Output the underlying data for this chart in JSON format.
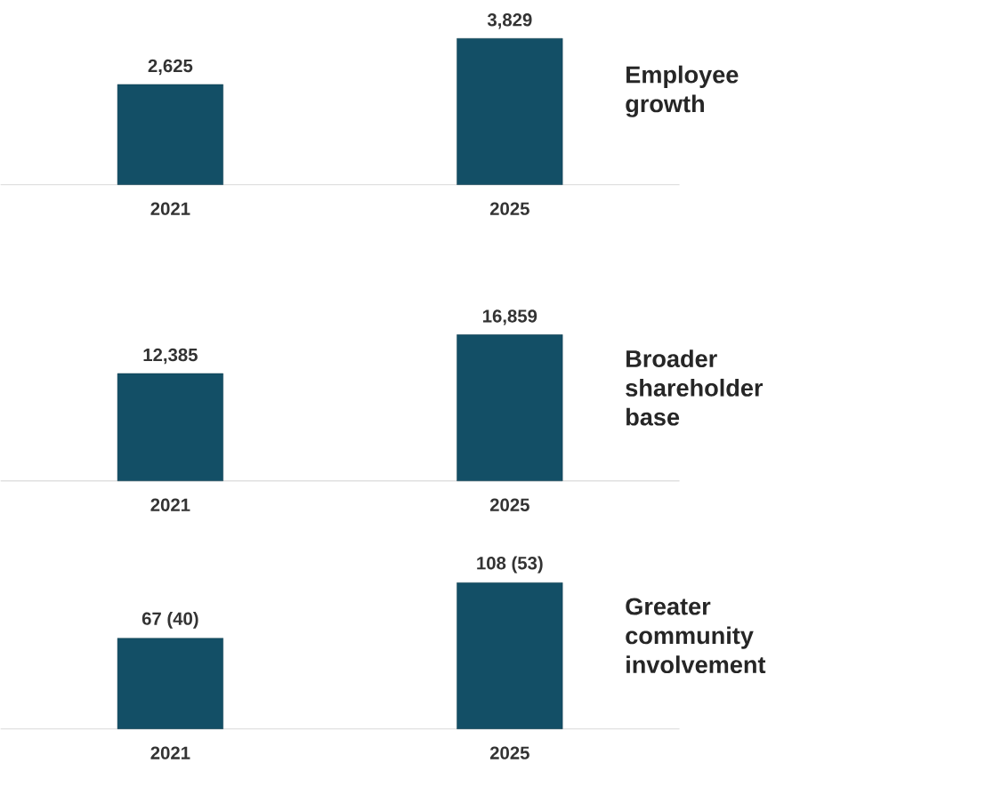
{
  "chart_data": [
    {
      "type": "bar",
      "title": "Employee growth",
      "categories": [
        "2021",
        "2025"
      ],
      "values": [
        2625,
        3829
      ],
      "value_labels": [
        "2,625",
        "3,829"
      ],
      "color": "#134f66"
    },
    {
      "type": "bar",
      "title": "Broader shareholder base",
      "categories": [
        "2021",
        "2025"
      ],
      "values": [
        12385,
        16859
      ],
      "value_labels": [
        "12,385",
        "16,859"
      ],
      "color": "#134f66"
    },
    {
      "type": "bar",
      "title": "Greater community involvement",
      "categories": [
        "2021",
        "2025"
      ],
      "values": [
        67,
        108
      ],
      "value_labels": [
        "67 (40)",
        "108 (53)"
      ],
      "color": "#134f66"
    }
  ]
}
